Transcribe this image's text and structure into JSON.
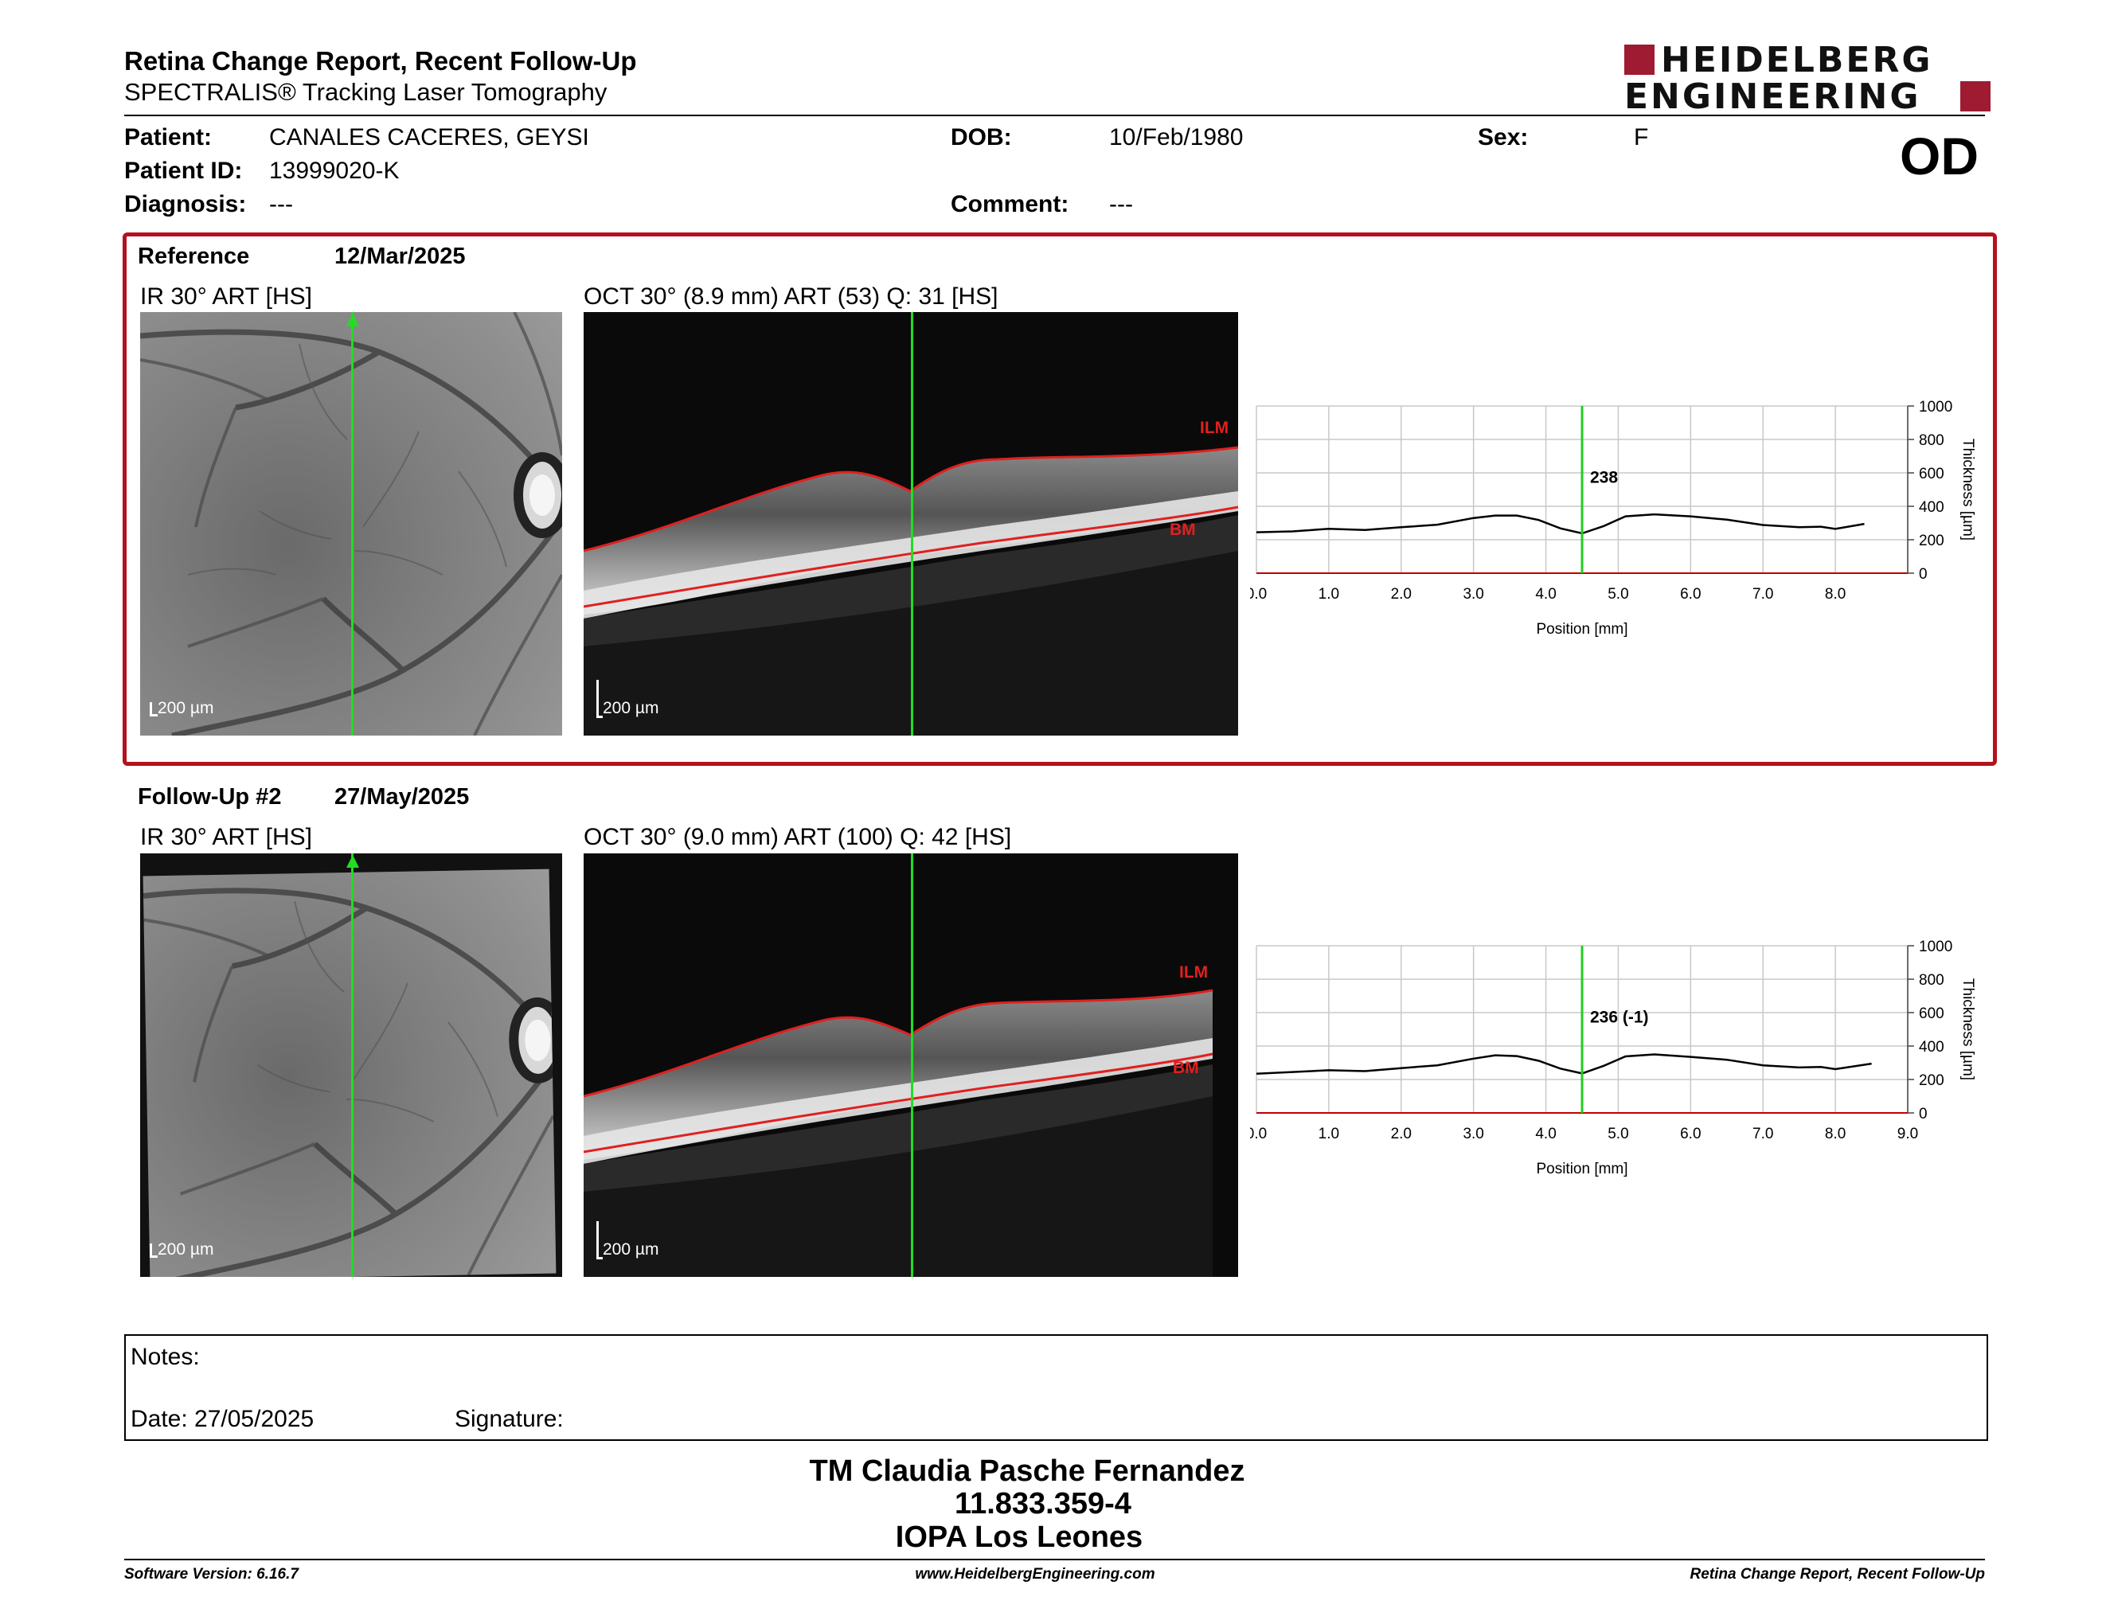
{
  "header": {
    "title": "Retina Change Report, Recent Follow-Up",
    "subtitle": "SPECTRALIS® Tracking Laser Tomography",
    "logo_line1": "HEIDELBERG",
    "logo_line2": "ENGINEERING",
    "eye": "OD",
    "brand_color": "#9e1b32"
  },
  "patient": {
    "patient_label": "Patient:",
    "patient_name": "CANALES CACERES, GEYSI",
    "id_label": "Patient ID:",
    "id_value": "13999020-K",
    "diagnosis_label": "Diagnosis:",
    "diagnosis_value": "---",
    "dob_label": "DOB:",
    "dob_value": "10/Feb/1980",
    "comment_label": "Comment:",
    "comment_value": "---",
    "sex_label": "Sex:",
    "sex_value": "F"
  },
  "reference": {
    "label": "Reference",
    "date": "12/Mar/2025",
    "ir_title": "IR 30° ART [HS]",
    "oct_title": "OCT 30° (8.9 mm) ART (53) Q: 31 [HS]",
    "ir_scale": "200 µm",
    "oct_scale": "200 µm",
    "ilm": "ILM",
    "bm": "BM",
    "panel_color": "#b3121e"
  },
  "followup": {
    "label": "Follow-Up #2",
    "date": "27/May/2025",
    "ir_title": "IR 30° ART [HS]",
    "oct_title": "OCT 30° (9.0 mm) ART (100) Q: 42 [HS]",
    "ir_scale": "200 µm",
    "oct_scale": "200 µm",
    "ilm": "ILM",
    "bm": "BM"
  },
  "chart_data": [
    {
      "type": "line",
      "xlabel": "Position [mm]",
      "ylabel": "Thickness [µm]",
      "xlim": [
        0,
        9.0
      ],
      "ylim": [
        0,
        1000
      ],
      "xticks": [
        "0.0",
        "1.0",
        "2.0",
        "3.0",
        "4.0",
        "5.0",
        "6.0",
        "7.0",
        "8.0"
      ],
      "yticks": [
        "0",
        "200",
        "400",
        "600",
        "800",
        "1000"
      ],
      "marker_x": 4.5,
      "marker_label": "238",
      "grid": true,
      "series": [
        {
          "x": [
            0,
            0.5,
            1.0,
            1.5,
            2.0,
            2.5,
            3.0,
            3.3,
            3.6,
            3.9,
            4.2,
            4.5,
            4.8,
            5.1,
            5.5,
            6.0,
            6.5,
            7.0,
            7.5,
            7.8,
            8.0,
            8.4
          ],
          "y": [
            245,
            250,
            265,
            258,
            275,
            290,
            330,
            345,
            345,
            318,
            268,
            238,
            282,
            340,
            352,
            340,
            320,
            288,
            275,
            278,
            265,
            295
          ]
        }
      ]
    },
    {
      "type": "line",
      "xlabel": "Position [mm]",
      "ylabel": "Thickness [µm]",
      "xlim": [
        0,
        9.0
      ],
      "ylim": [
        0,
        1000
      ],
      "xticks": [
        "0.0",
        "1.0",
        "2.0",
        "3.0",
        "4.0",
        "5.0",
        "6.0",
        "7.0",
        "8.0",
        "9.0"
      ],
      "yticks": [
        "0",
        "200",
        "400",
        "600",
        "800",
        "1000"
      ],
      "marker_x": 4.5,
      "marker_label": "236 (-1)",
      "grid": true,
      "series": [
        {
          "x": [
            0,
            0.5,
            1.0,
            1.5,
            2.0,
            2.5,
            3.0,
            3.3,
            3.6,
            3.9,
            4.2,
            4.5,
            4.8,
            5.1,
            5.5,
            6.0,
            6.5,
            7.0,
            7.5,
            7.8,
            8.0,
            8.5
          ],
          "y": [
            235,
            245,
            255,
            250,
            268,
            285,
            325,
            345,
            340,
            312,
            265,
            236,
            282,
            338,
            350,
            335,
            318,
            285,
            272,
            275,
            262,
            295
          ]
        }
      ]
    }
  ],
  "notes": {
    "notes_label": "Notes:",
    "date_label": "Date: 27/05/2025",
    "signature_label": "Signature:"
  },
  "signature_block": {
    "name": "TM Claudia Pasche Fernandez",
    "rut": "11.833.359-4",
    "clinic": "IOPA Los Leones"
  },
  "footer": {
    "software": "Software Version: 6.16.7",
    "website": "www.HeidelbergEngineering.com",
    "report": "Retina Change Report, Recent Follow-Up"
  }
}
